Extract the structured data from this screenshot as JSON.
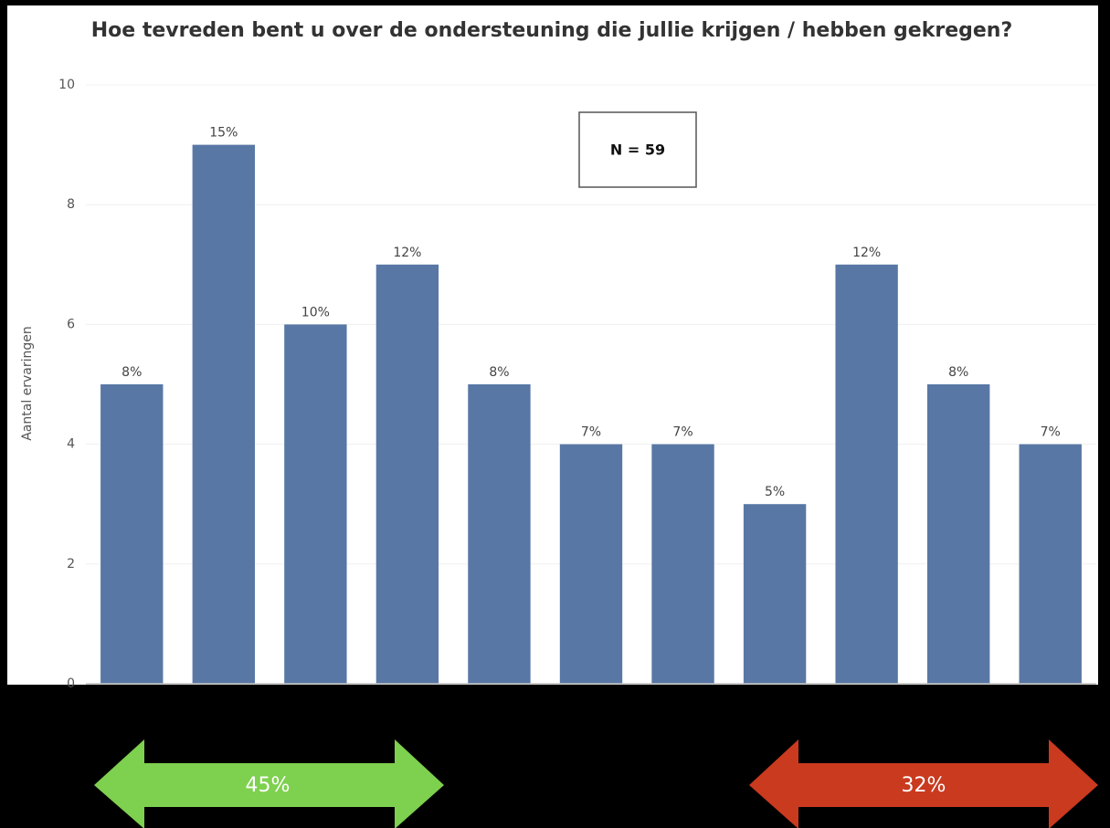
{
  "chart_data": {
    "type": "bar",
    "title": "Hoe tevreden bent u over de ondersteuning die jullie krijgen / hebben gekregen?",
    "y_label": "Aantal ervaringen",
    "categories": [
      null,
      null,
      null,
      null,
      null,
      null,
      null,
      null,
      null,
      null,
      null
    ],
    "values": [
      5,
      9,
      6,
      7,
      5,
      4,
      4,
      3,
      7,
      5,
      4
    ],
    "value_labels": [
      "8%",
      "15%",
      "10%",
      "12%",
      "8%",
      "7%",
      "7%",
      "5%",
      "12%",
      "8%",
      "7%"
    ],
    "color": "#5877a5",
    "ylim": [
      0,
      10
    ],
    "yticks": [
      0,
      2,
      4,
      6,
      8,
      10
    ],
    "grid": true,
    "annotations": [
      "N = 59",
      "45%",
      "32%"
    ]
  }
}
